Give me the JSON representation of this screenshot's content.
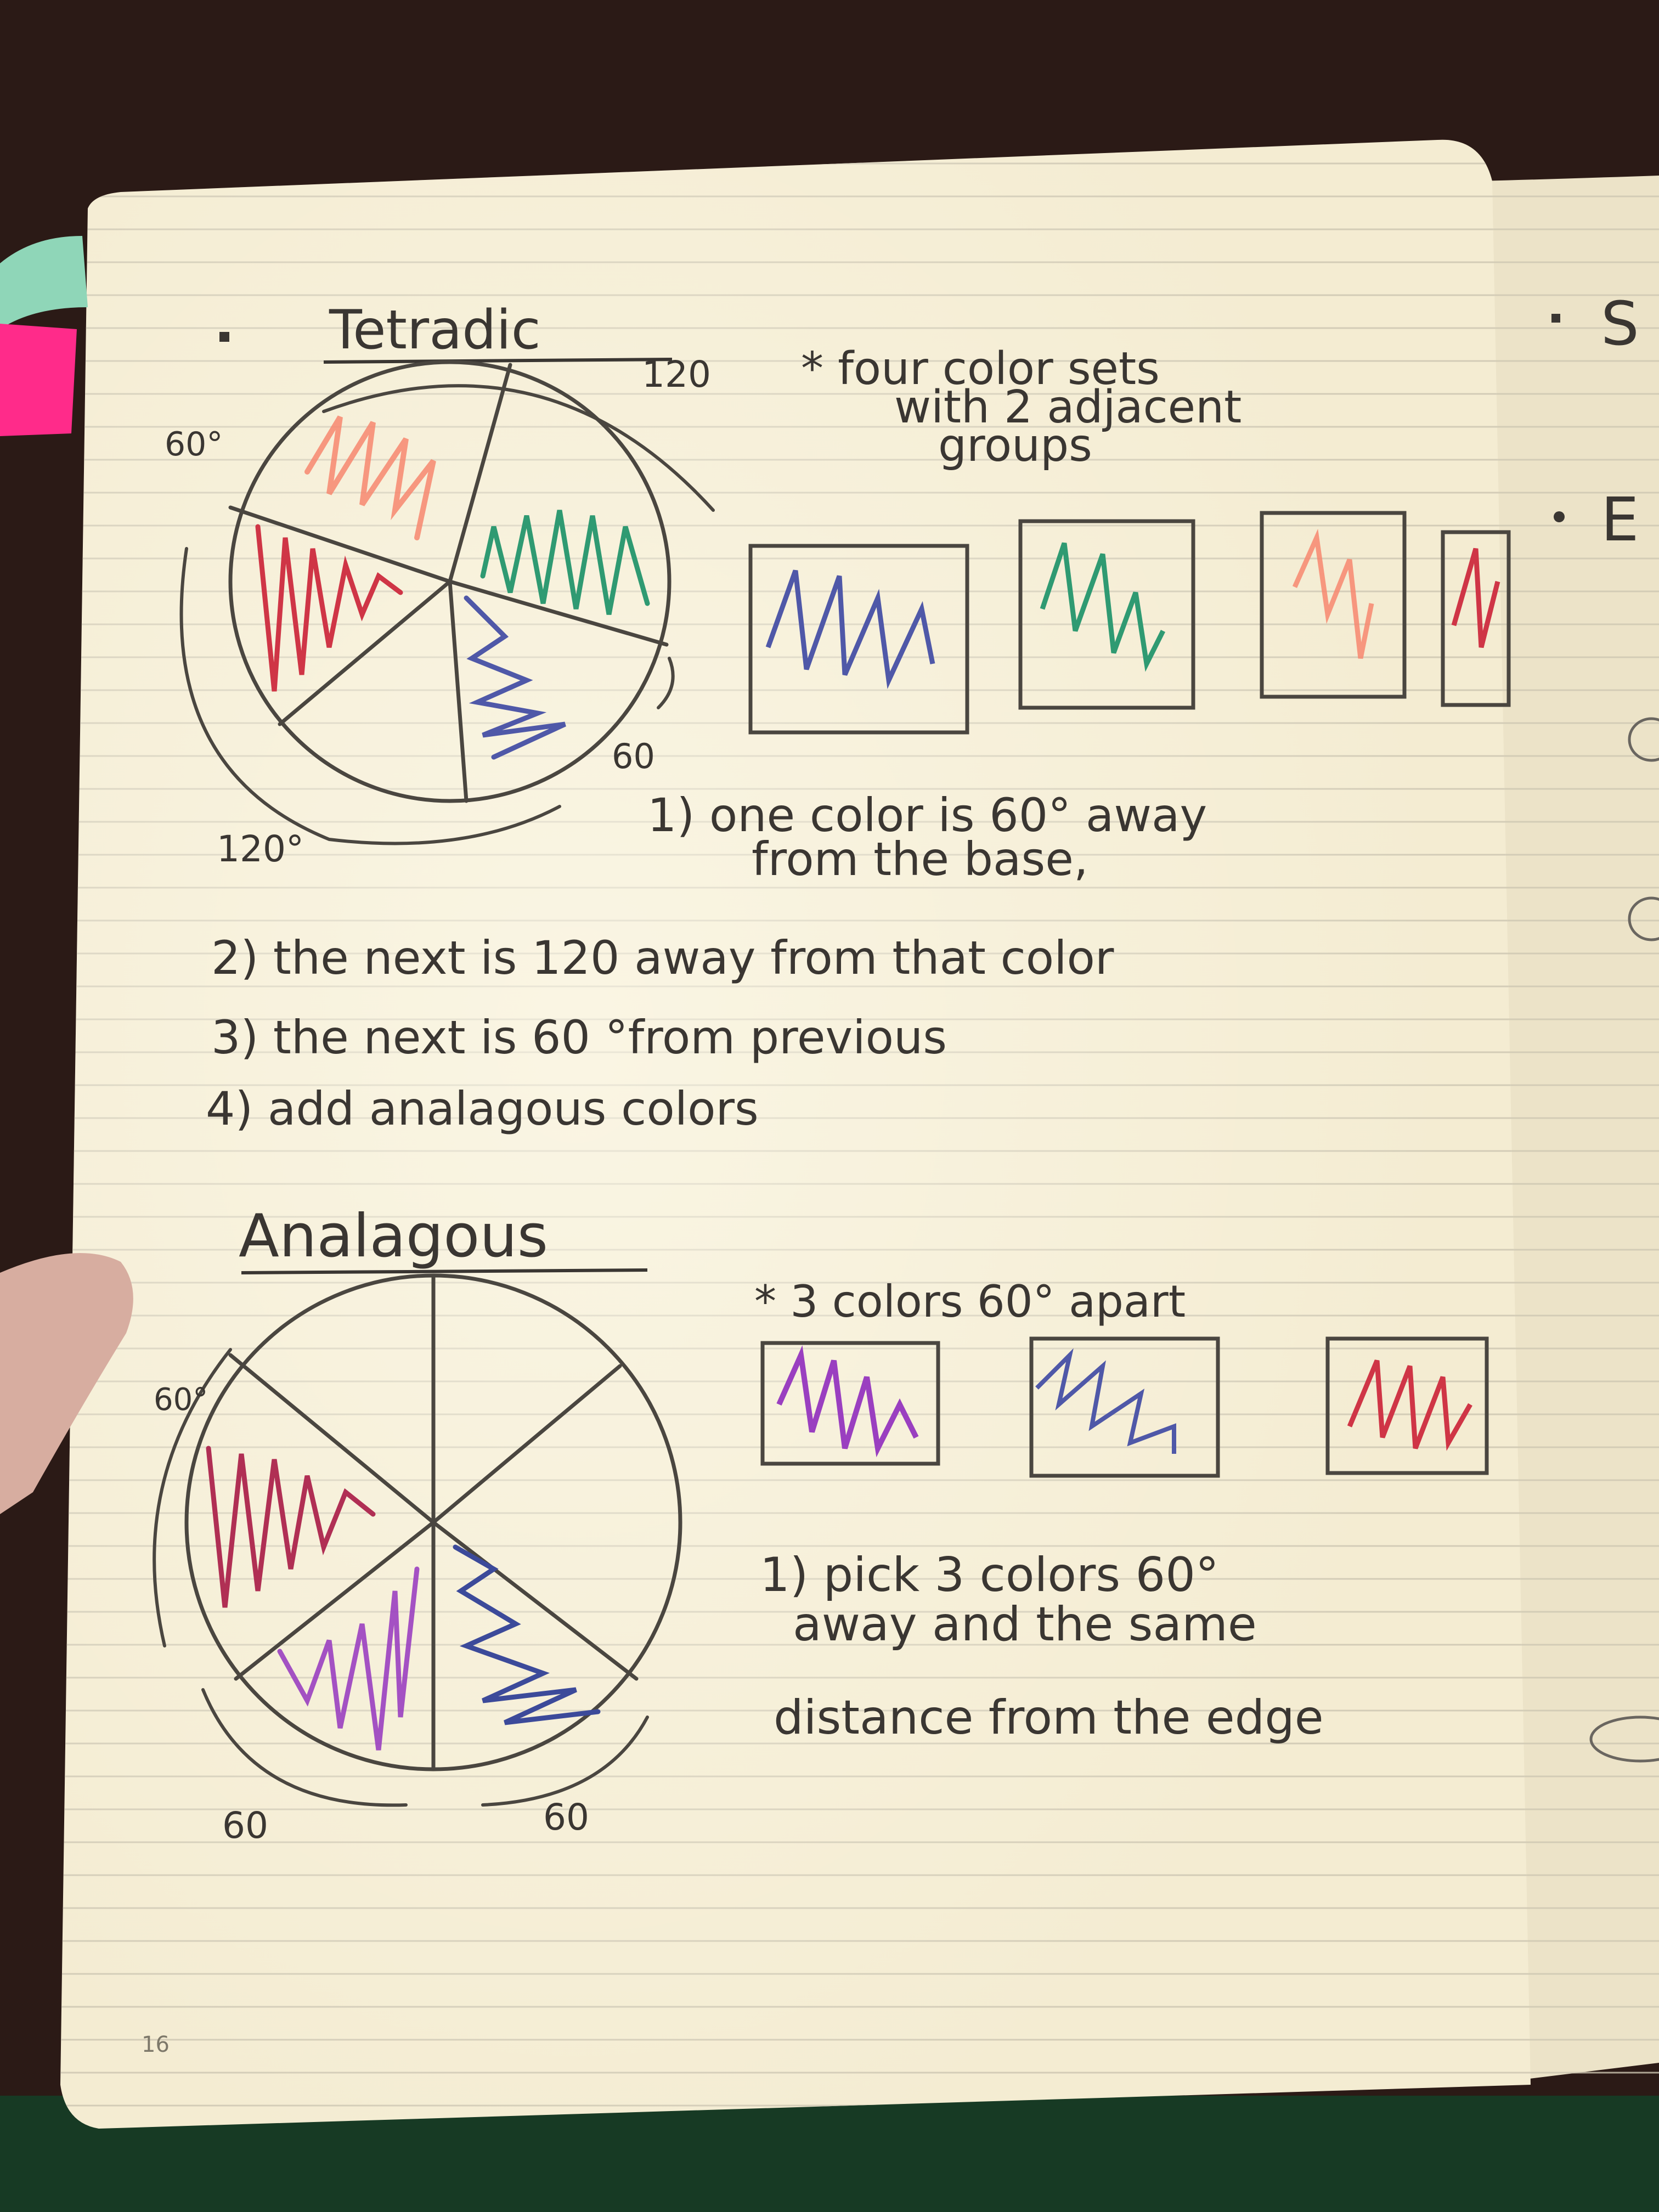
{
  "colors": {
    "background": "#2a1a17",
    "page": "#f3ebcf",
    "rule_line": "#c9c2b0",
    "ink": "#3a3632",
    "tab_teal": "#8fd6b8",
    "tab_pink": "#ff2b8a",
    "marker_blue": "#4f58a8",
    "marker_green": "#2f9a72",
    "marker_peach": "#f7876e",
    "marker_red": "#cf3546",
    "marker_purple": "#9a3fc0",
    "marker_wine": "#b02f54"
  },
  "left_page": {
    "page_number": "16",
    "tetradic": {
      "title": "Tetradic",
      "description_lines": [
        "* four color sets",
        "with 2 adjacent",
        "groups"
      ],
      "angle_labels": {
        "top": "120",
        "left_top": "60°",
        "right_bottom": "60",
        "bottom_left": "120°"
      },
      "swatch_colors": [
        "marker_blue",
        "marker_green",
        "marker_peach",
        "marker_red"
      ],
      "wheel_shaded_segments": [
        {
          "segment": "top-left",
          "color": "marker_peach"
        },
        {
          "segment": "left",
          "color": "marker_red"
        },
        {
          "segment": "right",
          "color": "marker_green"
        },
        {
          "segment": "lower-right",
          "color": "marker_blue"
        }
      ],
      "steps": [
        "1) one color is 60° away",
        "from the base,",
        "2) the next is 120 away from that color",
        "3) the next is 60 °from previous",
        "4) add analagous colors"
      ]
    },
    "analagous": {
      "title": "Analagous",
      "description": "* 3 colors 60° apart",
      "angle_labels": {
        "top_left": "60°",
        "bottom_left": "60",
        "bottom_right": "60"
      },
      "swatch_colors": [
        "marker_purple",
        "marker_blue",
        "marker_red"
      ],
      "wheel_shaded_segments": [
        {
          "segment": "left",
          "color": "marker_wine"
        },
        {
          "segment": "lower-left",
          "color": "marker_purple"
        },
        {
          "segment": "bottom-right",
          "color": "marker_blue"
        }
      ],
      "steps": [
        "1) pick 3 colors 60°",
        "away and the same",
        "distance from the edge"
      ]
    }
  },
  "right_page": {
    "bullets": [
      "S",
      "E"
    ]
  }
}
